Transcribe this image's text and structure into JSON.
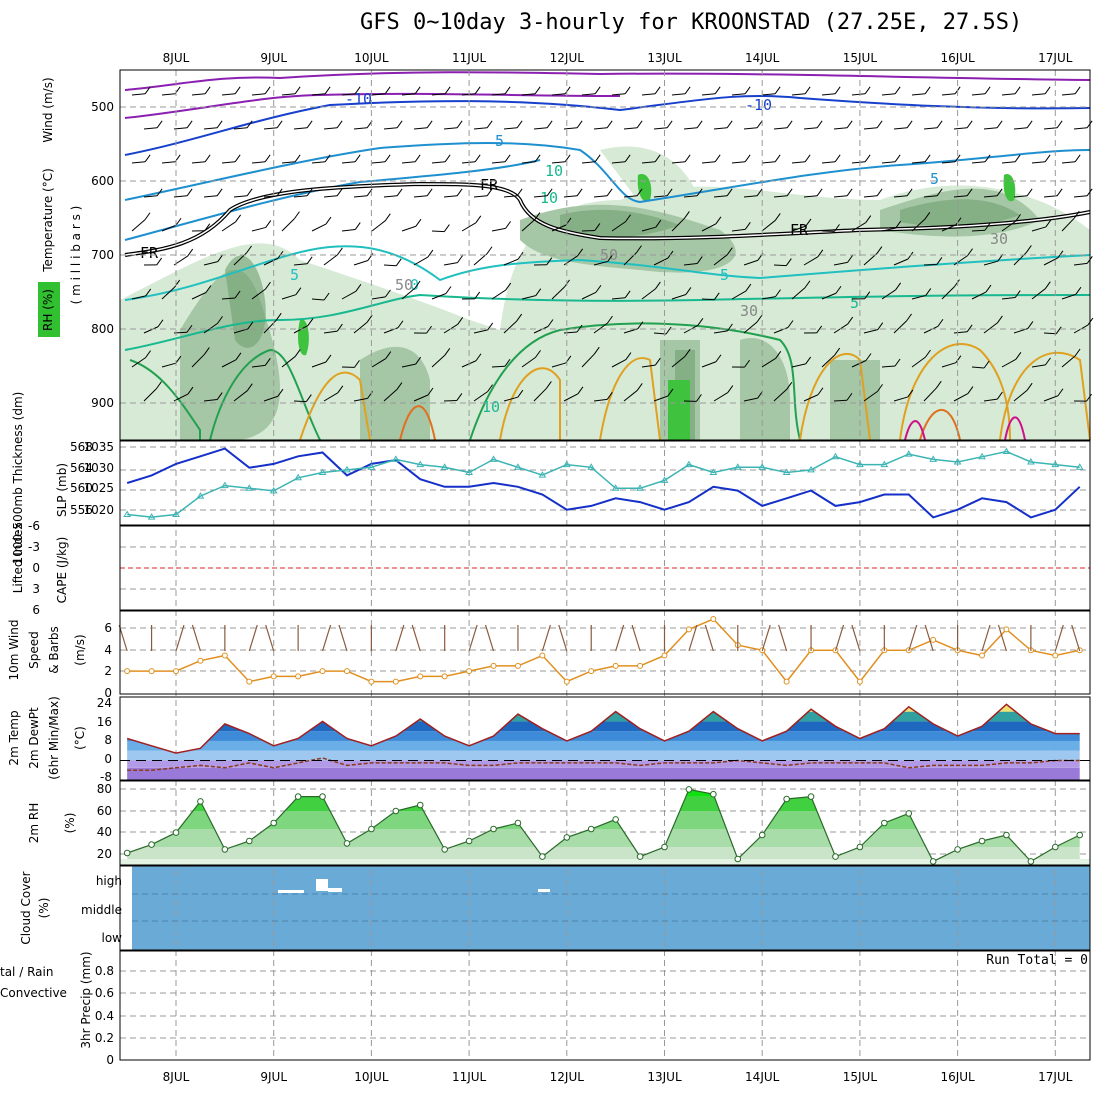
{
  "title": "GFS 0~10day 3-hourly for KROONSTAD (27.25E, 27.5S)",
  "colors": {
    "grid": "#999999",
    "rh_light": "#d6ead6",
    "rh_mid": "#a6c7a6",
    "rh_dark": "#6f9e6f",
    "rh_bright": "#3fc33f",
    "iso_purple": "#8a1fb0",
    "iso_blue": "#1740cc",
    "iso_lightblue": "#1e90d0",
    "iso_cyan": "#20c0c0",
    "iso_teal": "#18b890",
    "iso_green": "#22a050",
    "iso_orange": "#e0a020",
    "iso_darkorange": "#e07020",
    "iso_magenta": "#d0108a",
    "slp": "#1530c8",
    "thickness": "#3cb4b4",
    "li_zero": "#e02020",
    "wind_speed": "#e09020",
    "barbs": "#8b5a3c",
    "temp_line": "#a02020",
    "dew_line": "#8b3a1a",
    "rh2m_line": "#2a6a2a",
    "cloud_bg": "#6aaad6",
    "cloud_white": "#ffffff"
  },
  "date_labels": [
    "8JUL",
    "9JUL",
    "10JUL",
    "11JUL",
    "12JUL",
    "13JUL",
    "14JUL",
    "15JUL",
    "16JUL",
    "17JUL"
  ],
  "panels": {
    "upper": {
      "ylabel_wind": "Wind (m/s)",
      "ylabel_temp": "Temperature (°C)",
      "ylabel_rh": "RH (%)",
      "ylabel_axis": "( m i l l i b a r s )",
      "yticks": [
        "500",
        "600",
        "700",
        "800",
        "900"
      ],
      "contour_labels": [
        "-10",
        "-10",
        "5",
        "5",
        "5",
        "FR",
        "FR",
        "FR",
        "5",
        "0",
        "5",
        "10",
        "10",
        "10",
        "30",
        "30",
        "50",
        "50"
      ]
    },
    "slp": {
      "ylabel_thickness": "1000-500mb Thickness (dm)",
      "ylabel_slp": "SLP (mb)",
      "left_ticks": [
        "568",
        "564",
        "560",
        "556"
      ],
      "right_ticks": [
        "1035",
        "1030",
        "1025",
        "1020"
      ]
    },
    "li": {
      "ylabel_li": "Lifted Index",
      "ylabel_cape": "CAPE (J/kg)",
      "yticks": [
        "-6",
        "-3",
        "0",
        "3",
        "6"
      ]
    },
    "wind10": {
      "ylabel1": "10m Wind",
      "ylabel2": "Speed",
      "ylabel3": "& Barbs",
      "unit": "(m/s)",
      "yticks": [
        "6",
        "4",
        "2",
        "0"
      ]
    },
    "temp2m": {
      "ylabel1": "2m Temp",
      "ylabel2": "2m DewPt",
      "ylabel3": "(6hr Min/Max)",
      "unit": "(°C)",
      "yticks": [
        "24",
        "16",
        "8",
        "0",
        "-8"
      ]
    },
    "rh2m": {
      "ylabel": "2m RH",
      "unit": "(%)",
      "yticks": [
        "80",
        "60",
        "40",
        "20"
      ]
    },
    "cloud": {
      "ylabel": "Cloud Cover",
      "unit": "(%)",
      "levels": [
        "high",
        "middle",
        "low"
      ]
    },
    "precip": {
      "ylabel1": "tal / Rain",
      "ylabel2": "Convective",
      "ylabel3": "3hr Precip (mm)",
      "yticks": [
        "0.8",
        "0.6",
        "0.4",
        "0.2",
        "0"
      ],
      "run_total": "Run Total = 0"
    }
  },
  "chart_data": [
    {
      "type": "line",
      "title": "SLP and 1000-500mb Thickness",
      "x_unit": "day (8JUL = 0)",
      "series": [
        {
          "name": "SLP (mb)",
          "x": [
            -0.5,
            -0.25,
            0,
            0.25,
            0.5,
            0.75,
            1,
            1.25,
            1.5,
            1.75,
            2,
            2.25,
            2.5,
            2.75,
            3,
            3.25,
            3.5,
            3.75,
            4,
            4.25,
            4.5,
            4.75,
            5,
            5.25,
            5.5,
            5.75,
            6,
            6.25,
            6.5,
            6.75,
            7,
            7.25,
            7.5,
            7.75,
            8,
            8.25,
            8.5,
            8.75,
            9,
            9.25
          ],
          "values": [
            1027,
            1029,
            1032,
            1034,
            1036,
            1031,
            1032,
            1034,
            1035,
            1029,
            1032,
            1033,
            1028,
            1026,
            1026,
            1027,
            1026,
            1024,
            1020,
            1021,
            1023,
            1022,
            1020,
            1022,
            1026,
            1025,
            1021,
            1023,
            1025,
            1021,
            1022,
            1024,
            1024,
            1018,
            1020,
            1023,
            1022,
            1018,
            1020,
            1026
          ]
        },
        {
          "name": "Thickness (dm)",
          "x": [
            -0.5,
            -0.25,
            0,
            0.25,
            0.5,
            0.75,
            1,
            1.25,
            1.5,
            1.75,
            2,
            2.25,
            2.5,
            2.75,
            3,
            3.25,
            3.5,
            3.75,
            4,
            4.25,
            4.5,
            4.75,
            5,
            5.25,
            5.5,
            5.75,
            6,
            6.25,
            6.5,
            6.75,
            7,
            7.25,
            7.5,
            7.75,
            8,
            8.25,
            8.5,
            8.75,
            9,
            9.25
          ],
          "values": [
            555,
            554.5,
            555,
            558.5,
            560.5,
            560,
            559.5,
            562,
            563,
            563.5,
            564,
            565.5,
            564.5,
            564,
            563,
            565.5,
            564,
            562.5,
            564.5,
            564,
            560,
            560,
            561.5,
            564.5,
            563,
            564,
            564,
            563,
            563.5,
            566,
            564.5,
            564.5,
            566.5,
            565.5,
            565,
            566,
            567,
            565,
            564.5,
            564
          ]
        }
      ]
    },
    {
      "type": "line",
      "title": "10m Wind Speed",
      "y_unit": "m/s",
      "ylim": [
        0,
        7
      ],
      "x": [
        -0.5,
        -0.25,
        0,
        0.25,
        0.5,
        0.75,
        1,
        1.25,
        1.5,
        1.75,
        2,
        2.25,
        2.5,
        2.75,
        3,
        3.25,
        3.5,
        3.75,
        4,
        4.25,
        4.5,
        4.75,
        5,
        5.25,
        5.5,
        5.75,
        6,
        6.25,
        6.5,
        6.75,
        7,
        7.25,
        7.5,
        7.75,
        8,
        8.25,
        8.5,
        8.75,
        9,
        9.25
      ],
      "values": [
        2,
        2,
        2,
        3,
        3.5,
        1,
        1.5,
        1.5,
        2,
        2,
        1,
        1,
        1.5,
        1.5,
        2,
        2.5,
        2.5,
        3.5,
        1,
        2,
        2.5,
        2.5,
        3.5,
        6,
        7,
        4.5,
        4,
        1,
        4,
        4,
        1,
        4,
        4,
        5,
        4,
        3.5,
        6,
        4,
        3.5,
        4
      ]
    },
    {
      "type": "area",
      "title": "2m Temp / 2m DewPt",
      "y_unit": "°C",
      "ylim": [
        -8,
        26
      ],
      "x": [
        -0.5,
        -0.25,
        0,
        0.25,
        0.5,
        0.75,
        1,
        1.25,
        1.5,
        1.75,
        2,
        2.25,
        2.5,
        2.75,
        3,
        3.25,
        3.5,
        3.75,
        4,
        4.25,
        4.5,
        4.75,
        5,
        5.25,
        5.5,
        5.75,
        6,
        6.25,
        6.5,
        6.75,
        7,
        7.25,
        7.5,
        7.75,
        8,
        8.25,
        8.5,
        8.75,
        9,
        9.25
      ],
      "series": [
        {
          "name": "2m Temp",
          "values": [
            9,
            6,
            3,
            5,
            15,
            11,
            6,
            9,
            16,
            9,
            6,
            10,
            17,
            10,
            6,
            10,
            19,
            13,
            8,
            12,
            20,
            13,
            8,
            12,
            20,
            13,
            8,
            12,
            21,
            14,
            9,
            13,
            22,
            15,
            10,
            14,
            23,
            15,
            11,
            11
          ]
        },
        {
          "name": "2m DewPt",
          "values": [
            -4,
            -4,
            -3,
            -2,
            -3,
            -1,
            -3,
            -1,
            1,
            -2,
            -1,
            -1,
            -1,
            -1,
            -2,
            -2,
            -1,
            -1,
            -1,
            -1,
            -1,
            -2,
            -1,
            -1,
            -1,
            0,
            -1,
            -2,
            -1,
            -1,
            -1,
            -1,
            -3,
            -2,
            -2,
            -2,
            -1,
            -1,
            0,
            0
          ]
        }
      ]
    },
    {
      "type": "area",
      "title": "2m RH",
      "y_unit": "%",
      "ylim": [
        15,
        85
      ],
      "x": [
        -0.5,
        -0.25,
        0,
        0.25,
        0.5,
        0.75,
        1,
        1.25,
        1.5,
        1.75,
        2,
        2.25,
        2.5,
        2.75,
        3,
        3.25,
        3.5,
        3.75,
        4,
        4.25,
        4.5,
        4.75,
        5,
        5.25,
        5.5,
        5.75,
        6,
        6.25,
        6.5,
        6.75,
        7,
        7.25,
        7.5,
        7.75,
        8,
        8.25,
        8.5,
        8.75,
        9,
        9.25
      ],
      "values": [
        25,
        32,
        42,
        68,
        28,
        35,
        50,
        72,
        72,
        33,
        45,
        60,
        65,
        28,
        35,
        45,
        50,
        22,
        38,
        45,
        53,
        22,
        30,
        78,
        74,
        20,
        40,
        70,
        72,
        22,
        30,
        50,
        58,
        18,
        28,
        35,
        40,
        18,
        30,
        40
      ]
    }
  ]
}
